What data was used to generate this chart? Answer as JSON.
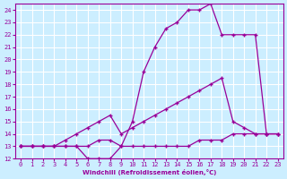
{
  "xlabel": "Windchill (Refroidissement éolien,°C)",
  "bg_color": "#cceeff",
  "line_color": "#990099",
  "grid_color": "#ffffff",
  "xlim": [
    -0.5,
    23.5
  ],
  "ylim": [
    12,
    24.5
  ],
  "yticks": [
    12,
    13,
    14,
    15,
    16,
    17,
    18,
    19,
    20,
    21,
    22,
    23,
    24
  ],
  "xticks": [
    0,
    1,
    2,
    3,
    4,
    5,
    6,
    7,
    8,
    9,
    10,
    11,
    12,
    13,
    14,
    15,
    16,
    17,
    18,
    19,
    20,
    21,
    22,
    23
  ],
  "line1_x": [
    0,
    1,
    2,
    3,
    4,
    5,
    6,
    7,
    8,
    9,
    10,
    11,
    12,
    13,
    14,
    15,
    16,
    17,
    18,
    19,
    20,
    21,
    22,
    23
  ],
  "line1_y": [
    13.0,
    13.0,
    13.0,
    13.0,
    13.0,
    13.0,
    13.0,
    13.5,
    13.5,
    13.0,
    13.0,
    13.0,
    13.0,
    13.0,
    13.0,
    13.0,
    13.5,
    13.5,
    13.5,
    14.0,
    14.0,
    14.0,
    14.0,
    14.0
  ],
  "line2_x": [
    0,
    1,
    2,
    3,
    4,
    5,
    6,
    7,
    8,
    9,
    10,
    11,
    12,
    13,
    14,
    15,
    16,
    17,
    18,
    19,
    20,
    21,
    22,
    23
  ],
  "line2_y": [
    13.0,
    13.0,
    13.0,
    13.0,
    13.5,
    14.0,
    14.5,
    15.0,
    15.5,
    14.0,
    14.5,
    15.0,
    15.5,
    16.0,
    16.5,
    17.0,
    17.5,
    18.0,
    18.5,
    15.0,
    14.5,
    14.0,
    14.0,
    14.0
  ],
  "line3_x": [
    0,
    1,
    2,
    3,
    4,
    5,
    6,
    7,
    8,
    9,
    10,
    11,
    12,
    13,
    14,
    15,
    16,
    17,
    18,
    19,
    20,
    21,
    22,
    23
  ],
  "line3_y": [
    13.0,
    13.0,
    13.0,
    13.0,
    13.0,
    13.0,
    12.0,
    12.0,
    12.0,
    13.0,
    15.0,
    19.0,
    21.0,
    22.5,
    23.0,
    24.0,
    24.0,
    24.5,
    22.0,
    22.0,
    22.0,
    22.0,
    14.0,
    14.0
  ]
}
